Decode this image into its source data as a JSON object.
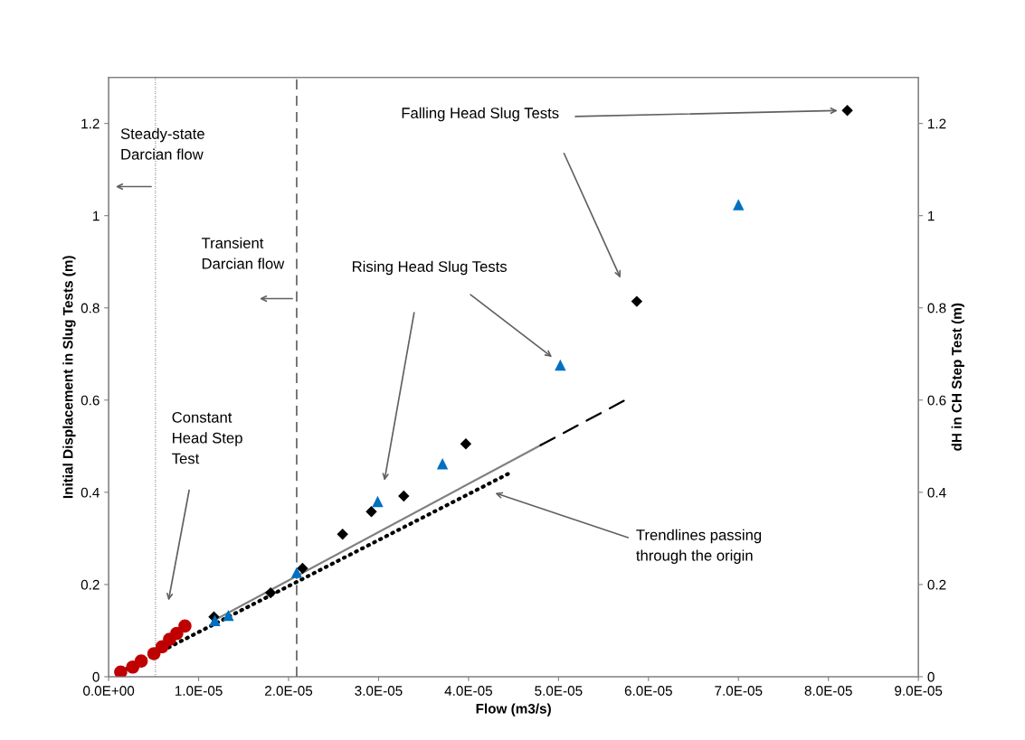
{
  "chart_data": {
    "type": "scatter",
    "xlabel": "Flow (m3/s)",
    "ylabel": "Initial Displacement in Slug Tests (m)",
    "y2label": "dH in CH Step Test (m)",
    "xlim": [
      0,
      9e-05
    ],
    "xticks": [
      {
        "value": 0,
        "label": "0.0E+00"
      },
      {
        "value": 1e-05,
        "label": "1.0E-05"
      },
      {
        "value": 2e-05,
        "label": "2.0E-05"
      },
      {
        "value": 3e-05,
        "label": "3.0E-05"
      },
      {
        "value": 4e-05,
        "label": "4.0E-05"
      },
      {
        "value": 5e-05,
        "label": "5.0E-05"
      },
      {
        "value": 6e-05,
        "label": "6.0E-05"
      },
      {
        "value": 7e-05,
        "label": "7.0E-05"
      },
      {
        "value": 8e-05,
        "label": "8.0E-05"
      },
      {
        "value": 9e-05,
        "label": "9.0E-05"
      }
    ],
    "ylim": [
      0,
      1.3
    ],
    "yticks": [
      0,
      0.2,
      0.4,
      0.6,
      0.8,
      1,
      1.2
    ],
    "y2lim": [
      0,
      1.3
    ],
    "y2ticks": [
      0,
      0.2,
      0.4,
      0.6,
      0.8,
      1,
      1.2
    ],
    "grid": false,
    "legend": false,
    "series": [
      {
        "type": "line",
        "color": "#808080",
        "line_style": "solid",
        "marker": "none",
        "x": [
          1.17e-05,
          4.8e-05
        ],
        "values": [
          0.122,
          0.502
        ]
      },
      {
        "type": "line",
        "color": "#000000",
        "line_style": "dashed",
        "marker": "none",
        "x": [
          4.8e-05,
          5.75e-05
        ],
        "values": [
          0.502,
          0.601
        ]
      },
      {
        "type": "line",
        "color": "#000000",
        "line_style": "dotted",
        "marker": "none",
        "axis": "y2",
        "x": [
          1.3e-06,
          4.48e-05
        ],
        "values": [
          0.01,
          0.444
        ]
      },
      {
        "color": "#c00000",
        "marker": "circle",
        "axis": "y2",
        "x": [
          1.34e-06,
          2.68e-06,
          3.62e-06,
          5.03e-06,
          5.94e-06,
          6.77e-06,
          7.57e-06,
          8.48e-06
        ],
        "values": [
          0.01,
          0.021,
          0.034,
          0.05,
          0.065,
          0.081,
          0.094,
          0.11
        ]
      },
      {
        "color": "#000000",
        "marker": "diamond",
        "x": [
          1.17e-05,
          1.8e-05,
          2.155e-05,
          2.6e-05,
          2.92e-05,
          3.28e-05,
          3.97e-05,
          5.87e-05,
          8.21e-05
        ],
        "values": [
          0.13,
          0.182,
          0.235,
          0.309,
          0.358,
          0.392,
          0.505,
          0.814,
          1.228
        ]
      },
      {
        "color": "#0070c0",
        "marker": "triangle",
        "x": [
          1.18e-05,
          1.33e-05,
          2.09e-05,
          2.99e-05,
          3.71e-05,
          5.02e-05,
          7e-05
        ],
        "values": [
          0.122,
          0.133,
          0.226,
          0.38,
          0.462,
          0.676,
          1.024
        ]
      }
    ],
    "ref_lines": [
      {
        "axis": "x",
        "value": 5.2e-06,
        "line_style": "dotted",
        "color": "#404040"
      },
      {
        "axis": "x",
        "value": 2.09e-05,
        "line_style": "dashed",
        "color": "#404040"
      }
    ],
    "annotations": [
      "Steady-state\nDarcian flow",
      "Transient\nDarcian flow",
      "Rising Head Slug Tests",
      "Falling Head Slug Tests",
      "Constant\nHead Step\nTest",
      "Trendlines passing\nthrough the origin"
    ]
  }
}
